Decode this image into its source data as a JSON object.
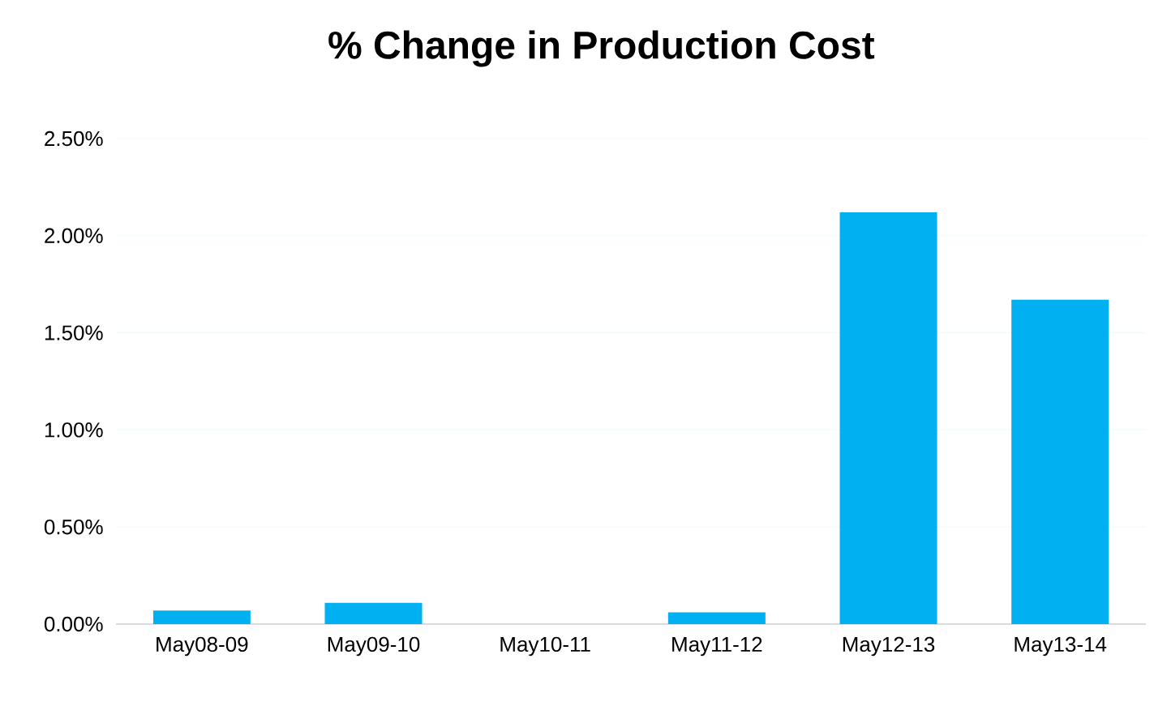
{
  "chart_data": {
    "type": "bar",
    "title": "% Change in Production Cost",
    "categories": [
      "May08-09",
      "May09-10",
      "May10-11",
      "May11-12",
      "May12-13",
      "May13-14"
    ],
    "values": [
      0.07,
      0.11,
      0,
      0.06,
      2.12,
      1.67
    ],
    "color": "#00b0f0",
    "ylim": [
      0,
      2.5
    ],
    "yticks": [
      {
        "value": 0,
        "label": "0.00%"
      },
      {
        "value": 0.5,
        "label": "0.50%"
      },
      {
        "value": 1,
        "label": "1.00%"
      },
      {
        "value": 1.5,
        "label": "1.50%"
      },
      {
        "value": 2,
        "label": "2.00%"
      },
      {
        "value": 2.5,
        "label": "2.50%"
      }
    ],
    "grid": "y"
  }
}
